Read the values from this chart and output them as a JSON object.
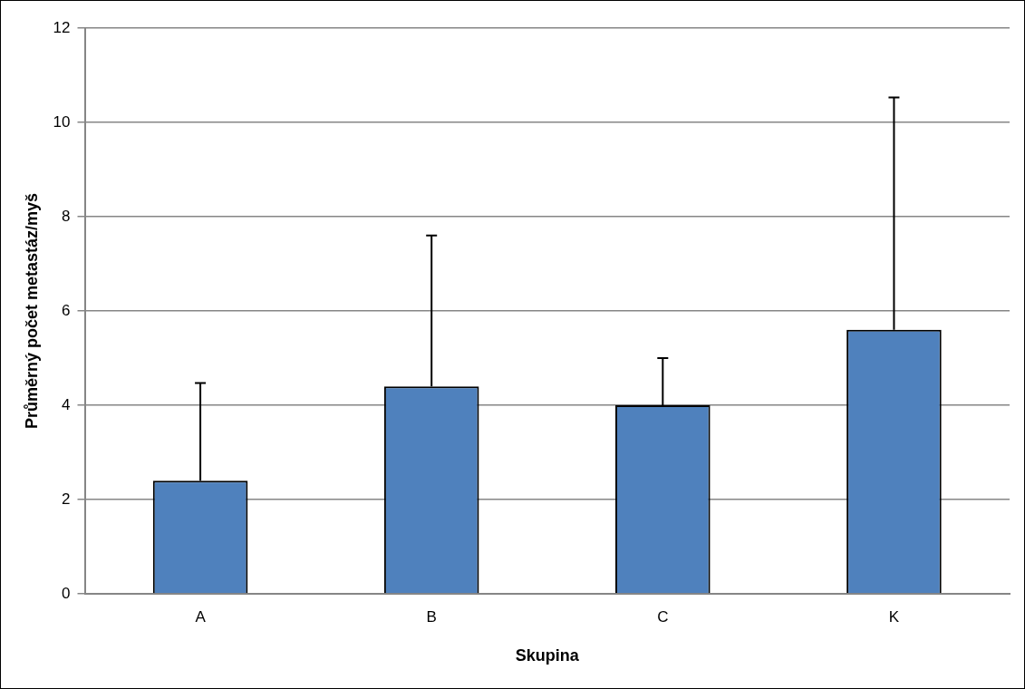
{
  "chart_data": {
    "type": "bar",
    "xlabel": "Skupina",
    "ylabel": "Průměrný počet metastáz/myš",
    "categories": [
      "A",
      "B",
      "C",
      "K"
    ],
    "values": [
      2.4,
      4.4,
      4.0,
      5.6
    ],
    "errors": [
      [
        2.4,
        4.47
      ],
      [
        4.4,
        7.6
      ],
      [
        4.0,
        5.0
      ],
      [
        5.6,
        10.53
      ]
    ],
    "color": "#4f81bd",
    "ylim": [
      0,
      12
    ],
    "yticks": [
      0,
      2,
      4,
      6,
      8,
      10,
      12
    ],
    "grid": "y",
    "legend": false
  }
}
